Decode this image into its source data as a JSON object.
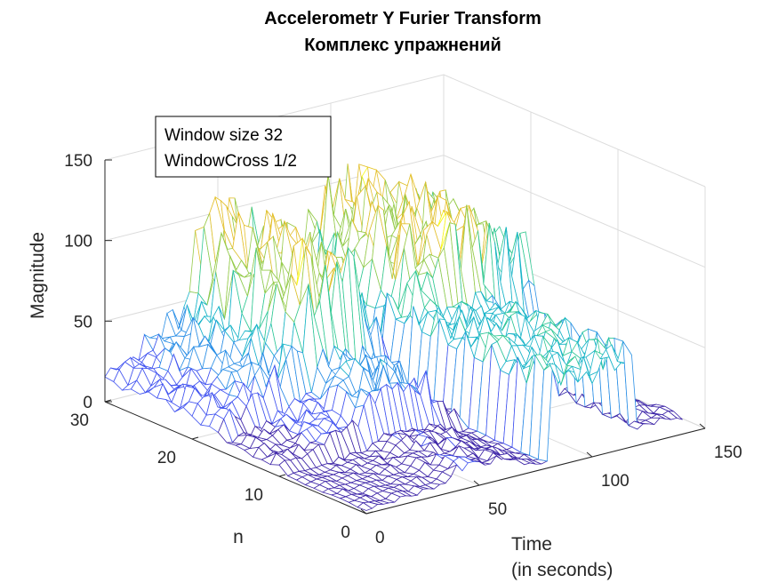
{
  "chart_data": {
    "type": "surface",
    "title": [
      "Accelerometr Y Furier Transform",
      "Комплекс упражнений"
    ],
    "zlabel": "Magnitude",
    "ylabel": "n",
    "xlabel": [
      "Time",
      "(in seconds)"
    ],
    "annotation": [
      "Window size 32",
      "WindowCross 1/2"
    ],
    "xlim": [
      0,
      150
    ],
    "ylim": [
      0,
      30
    ],
    "zlim": [
      0,
      150
    ],
    "xticks": [
      "0",
      "50",
      "100",
      "150"
    ],
    "yticks": [
      "0",
      "10",
      "20",
      "30"
    ],
    "zticks": [
      "0",
      "50",
      "100",
      "150"
    ],
    "grid": true,
    "colormap": [
      "#3e26a8",
      "#4254f0",
      "#2b8fe6",
      "#18b4c8",
      "#33c995",
      "#95cb4a",
      "#e4c02d",
      "#f9fb15"
    ],
    "magnitude_profile_over_time": {
      "time": [
        0,
        5,
        10,
        15,
        20,
        25,
        30,
        35,
        40,
        45,
        50,
        55,
        60,
        65,
        70,
        75,
        80,
        85,
        90,
        95,
        100,
        105,
        110,
        115,
        120,
        125,
        130,
        135,
        140
      ],
      "peak_magnitude": [
        20,
        30,
        25,
        35,
        40,
        45,
        55,
        60,
        108,
        115,
        113,
        110,
        105,
        100,
        60,
        35,
        30,
        60,
        110,
        110,
        112,
        113,
        114,
        113,
        110,
        95,
        95,
        90,
        85
      ]
    }
  }
}
